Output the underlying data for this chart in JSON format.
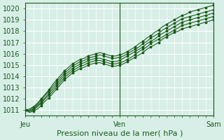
{
  "title": "",
  "xlabel": "Pression niveau de la mer( hPa )",
  "ylabel": "",
  "bg_color": "#d8efe8",
  "grid_color": "#ffffff",
  "line_color": "#1a5c1a",
  "ylim": [
    1010.5,
    1020.5
  ],
  "xlim": [
    0,
    48
  ],
  "yticks": [
    1011,
    1012,
    1013,
    1014,
    1015,
    1016,
    1017,
    1018,
    1019,
    1020
  ],
  "xtick_positions": [
    0,
    24,
    48
  ],
  "xtick_labels": [
    "Jeu",
    "Ven",
    "Sam"
  ],
  "series": [
    [
      1011.0,
      1011.1,
      1011.3,
      1011.6,
      1012.0,
      1012.4,
      1012.8,
      1013.3,
      1013.7,
      1014.1,
      1014.5,
      1014.8,
      1015.1,
      1015.3,
      1015.5,
      1015.6,
      1015.8,
      1015.9,
      1016.0,
      1016.1,
      1016.0,
      1015.9,
      1015.8,
      1015.8,
      1015.9,
      1016.0,
      1016.2,
      1016.4,
      1016.6,
      1016.9,
      1017.1,
      1017.4,
      1017.6,
      1017.9,
      1018.1,
      1018.4,
      1018.6,
      1018.8,
      1019.0,
      1019.2,
      1019.4,
      1019.5,
      1019.7,
      1019.8,
      1019.9,
      1020.0,
      1020.1,
      1020.2,
      1020.3
    ],
    [
      1011.0,
      1011.0,
      1011.2,
      1011.5,
      1011.9,
      1012.3,
      1012.7,
      1013.1,
      1013.5,
      1013.9,
      1014.3,
      1014.6,
      1014.9,
      1015.1,
      1015.3,
      1015.4,
      1015.6,
      1015.7,
      1015.8,
      1015.9,
      1015.8,
      1015.7,
      1015.6,
      1015.6,
      1015.7,
      1015.8,
      1016.0,
      1016.2,
      1016.4,
      1016.6,
      1016.9,
      1017.1,
      1017.4,
      1017.6,
      1017.8,
      1018.1,
      1018.3,
      1018.5,
      1018.7,
      1018.9,
      1019.1,
      1019.2,
      1019.3,
      1019.4,
      1019.5,
      1019.6,
      1019.7,
      1019.8,
      1019.9
    ],
    [
      1011.0,
      1010.9,
      1011.1,
      1011.4,
      1011.7,
      1012.1,
      1012.5,
      1012.9,
      1013.3,
      1013.7,
      1014.1,
      1014.4,
      1014.7,
      1014.9,
      1015.1,
      1015.2,
      1015.4,
      1015.5,
      1015.6,
      1015.6,
      1015.5,
      1015.4,
      1015.3,
      1015.3,
      1015.4,
      1015.6,
      1015.8,
      1016.0,
      1016.2,
      1016.4,
      1016.6,
      1016.9,
      1017.1,
      1017.3,
      1017.6,
      1017.8,
      1018.0,
      1018.2,
      1018.4,
      1018.6,
      1018.8,
      1018.9,
      1019.0,
      1019.1,
      1019.2,
      1019.3,
      1019.4,
      1019.5,
      1019.6
    ],
    [
      1011.0,
      1010.9,
      1011.0,
      1011.3,
      1011.6,
      1012.0,
      1012.3,
      1012.7,
      1013.1,
      1013.5,
      1013.9,
      1014.2,
      1014.5,
      1014.7,
      1014.9,
      1015.0,
      1015.2,
      1015.3,
      1015.4,
      1015.4,
      1015.3,
      1015.2,
      1015.1,
      1015.1,
      1015.2,
      1015.3,
      1015.5,
      1015.7,
      1015.9,
      1016.2,
      1016.4,
      1016.6,
      1016.9,
      1017.1,
      1017.3,
      1017.5,
      1017.7,
      1017.9,
      1018.1,
      1018.3,
      1018.5,
      1018.6,
      1018.7,
      1018.8,
      1018.9,
      1019.0,
      1019.1,
      1019.2,
      1019.3
    ],
    [
      1011.0,
      1010.8,
      1010.9,
      1011.1,
      1011.4,
      1011.8,
      1012.1,
      1012.5,
      1012.9,
      1013.3,
      1013.7,
      1014.0,
      1014.3,
      1014.5,
      1014.7,
      1014.8,
      1015.0,
      1015.1,
      1015.2,
      1015.2,
      1015.1,
      1015.0,
      1014.9,
      1014.9,
      1015.0,
      1015.1,
      1015.3,
      1015.5,
      1015.7,
      1015.9,
      1016.1,
      1016.4,
      1016.6,
      1016.8,
      1017.0,
      1017.3,
      1017.5,
      1017.7,
      1017.9,
      1018.0,
      1018.2,
      1018.3,
      1018.4,
      1018.5,
      1018.6,
      1018.7,
      1018.8,
      1018.9,
      1019.0
    ]
  ]
}
